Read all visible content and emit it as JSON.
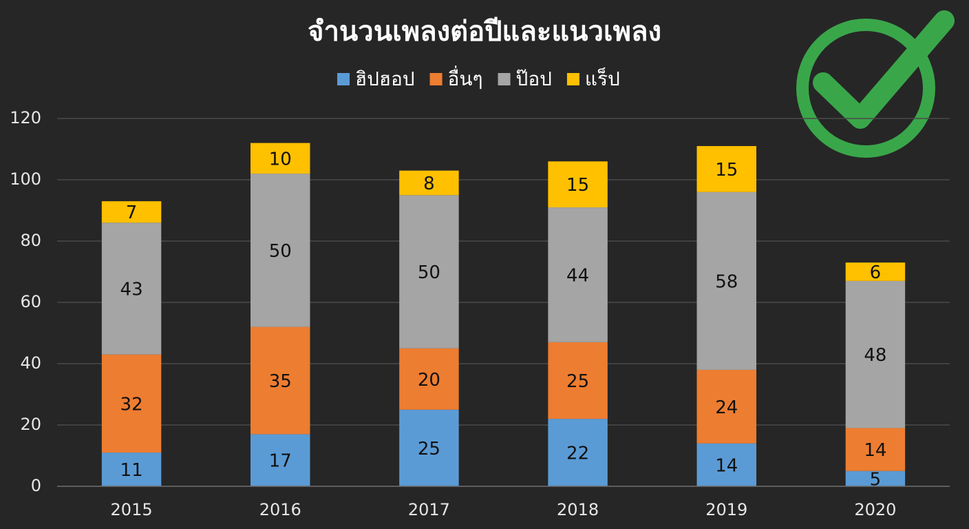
{
  "chart_data": {
    "type": "stacked-bar",
    "title": "จำนวนเพลงต่อปีและแนวเพลง",
    "categories": [
      "2015",
      "2016",
      "2017",
      "2018",
      "2019",
      "2020"
    ],
    "series": [
      {
        "name": "ฮิปฮอป",
        "color": "#5b9bd5",
        "values": [
          11,
          17,
          25,
          22,
          14,
          5
        ]
      },
      {
        "name": "อื่นๆ",
        "color": "#ed7d31",
        "values": [
          32,
          35,
          20,
          25,
          24,
          14
        ]
      },
      {
        "name": "ป๊อป",
        "color": "#a5a5a5",
        "values": [
          43,
          50,
          50,
          44,
          58,
          48
        ]
      },
      {
        "name": "แร็ป",
        "color": "#ffc000",
        "values": [
          7,
          10,
          8,
          15,
          15,
          6
        ]
      }
    ],
    "ylim": [
      0,
      120
    ],
    "yticks": [
      0,
      20,
      40,
      60,
      80,
      100,
      120
    ],
    "grid": true,
    "legend": "top"
  }
}
